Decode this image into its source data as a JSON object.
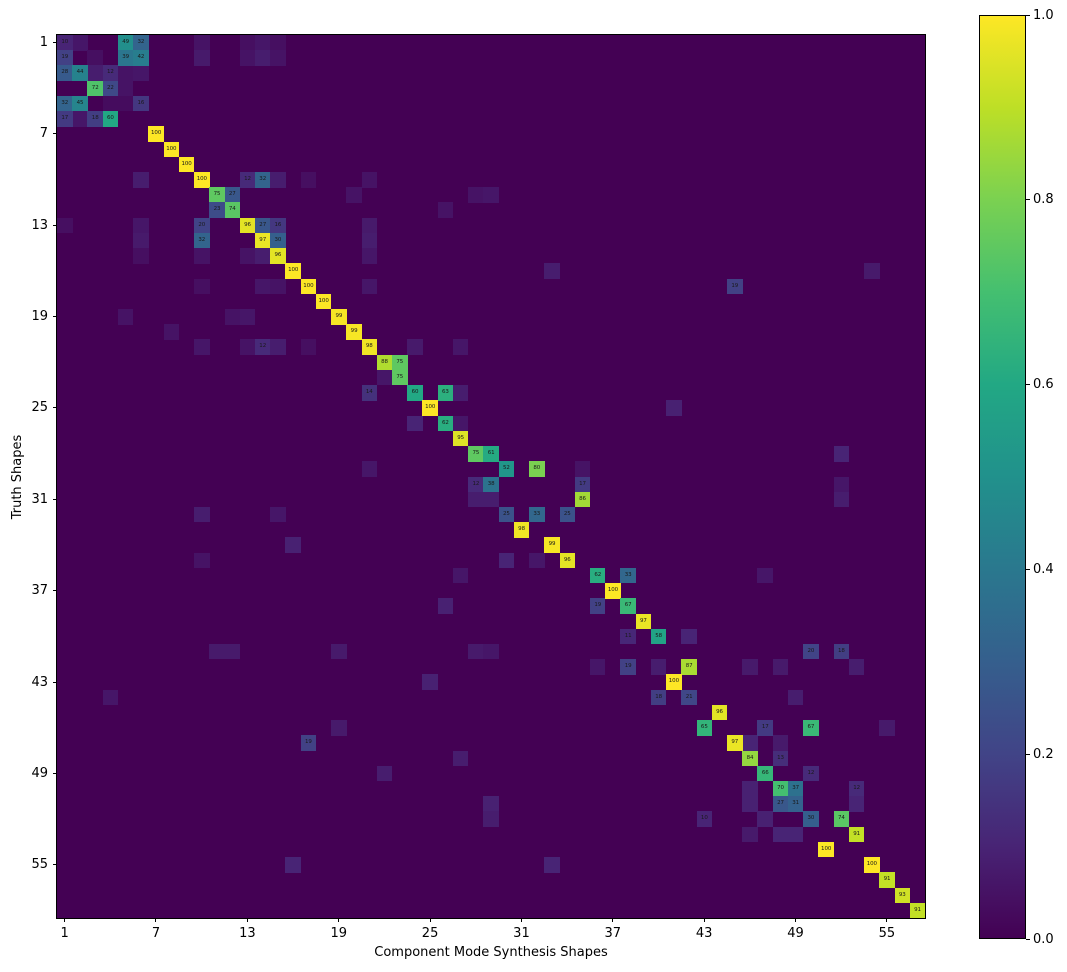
{
  "chart_data": {
    "type": "heatmap",
    "title": "",
    "xlabel": "Component Mode Synthesis Shapes",
    "ylabel": "Truth Shapes",
    "n_rows": 58,
    "n_cols": 57,
    "x_ticks": [
      "1",
      "7",
      "13",
      "19",
      "25",
      "31",
      "37",
      "43",
      "49",
      "55"
    ],
    "y_ticks": [
      "1",
      "7",
      "13",
      "19",
      "25",
      "31",
      "37",
      "43",
      "49",
      "55"
    ],
    "xlim": [
      1,
      57
    ],
    "ylim": [
      1,
      58
    ],
    "grid": false,
    "colorbar": {
      "min": 0.0,
      "max": 1.0,
      "ticks": [
        "0.0",
        "0.2",
        "0.4",
        "0.6",
        "0.8",
        "1.0"
      ],
      "colormap": "viridis",
      "position": "right"
    },
    "colormap_stops": [
      "#440154",
      "#482475",
      "#414487",
      "#355f8d",
      "#2a788e",
      "#21918c",
      "#22a884",
      "#44bf70",
      "#7ad151",
      "#bddf26",
      "#fde725"
    ],
    "annotated_cells": [
      [
        1,
        1,
        10
      ],
      [
        1,
        5,
        49
      ],
      [
        1,
        6,
        32
      ],
      [
        2,
        1,
        19
      ],
      [
        2,
        5,
        39
      ],
      [
        2,
        6,
        42
      ],
      [
        3,
        1,
        28
      ],
      [
        3,
        2,
        44
      ],
      [
        3,
        4,
        12
      ],
      [
        4,
        3,
        72
      ],
      [
        4,
        4,
        22
      ],
      [
        5,
        1,
        32
      ],
      [
        5,
        2,
        45
      ],
      [
        5,
        6,
        16
      ],
      [
        6,
        1,
        17
      ],
      [
        6,
        3,
        18
      ],
      [
        6,
        4,
        60
      ],
      [
        7,
        7,
        100
      ],
      [
        8,
        8,
        100
      ],
      [
        9,
        9,
        100
      ],
      [
        10,
        10,
        100
      ],
      [
        10,
        13,
        12
      ],
      [
        10,
        14,
        32
      ],
      [
        11,
        11,
        75
      ],
      [
        11,
        12,
        27
      ],
      [
        12,
        11,
        23
      ],
      [
        12,
        12,
        74
      ],
      [
        13,
        10,
        20
      ],
      [
        13,
        13,
        96
      ],
      [
        13,
        14,
        27
      ],
      [
        13,
        15,
        16
      ],
      [
        14,
        10,
        32
      ],
      [
        14,
        14,
        97
      ],
      [
        14,
        15,
        30
      ],
      [
        15,
        15,
        96
      ],
      [
        16,
        16,
        100
      ],
      [
        17,
        17,
        100
      ],
      [
        17,
        45,
        19
      ],
      [
        18,
        18,
        100
      ],
      [
        19,
        19,
        99
      ],
      [
        20,
        20,
        99
      ],
      [
        21,
        14,
        12
      ],
      [
        21,
        21,
        98
      ],
      [
        22,
        22,
        88
      ],
      [
        22,
        23,
        75
      ],
      [
        23,
        23,
        75
      ],
      [
        24,
        21,
        14
      ],
      [
        24,
        24,
        60
      ],
      [
        24,
        26,
        63
      ],
      [
        25,
        25,
        100
      ],
      [
        26,
        26,
        62
      ],
      [
        27,
        27,
        95
      ],
      [
        28,
        28,
        75
      ],
      [
        28,
        29,
        61
      ],
      [
        29,
        30,
        52
      ],
      [
        29,
        32,
        80
      ],
      [
        30,
        28,
        12
      ],
      [
        30,
        29,
        38
      ],
      [
        30,
        35,
        17
      ],
      [
        31,
        35,
        86
      ],
      [
        32,
        30,
        25
      ],
      [
        32,
        32,
        33
      ],
      [
        32,
        34,
        25
      ],
      [
        33,
        31,
        98
      ],
      [
        34,
        33,
        99
      ],
      [
        35,
        34,
        96
      ],
      [
        36,
        36,
        62
      ],
      [
        36,
        38,
        33
      ],
      [
        37,
        37,
        100
      ],
      [
        38,
        36,
        19
      ],
      [
        38,
        38,
        67
      ],
      [
        39,
        39,
        97
      ],
      [
        40,
        38,
        11
      ],
      [
        40,
        40,
        58
      ],
      [
        41,
        50,
        20
      ],
      [
        41,
        52,
        18
      ],
      [
        42,
        38,
        19
      ],
      [
        42,
        42,
        87
      ],
      [
        43,
        41,
        100
      ],
      [
        44,
        40,
        18
      ],
      [
        44,
        42,
        21
      ],
      [
        45,
        44,
        96
      ],
      [
        46,
        43,
        65
      ],
      [
        46,
        47,
        17
      ],
      [
        46,
        50,
        67
      ],
      [
        47,
        17,
        19
      ],
      [
        47,
        45,
        97
      ],
      [
        48,
        46,
        84
      ],
      [
        48,
        48,
        13
      ],
      [
        49,
        47,
        66
      ],
      [
        49,
        50,
        12
      ],
      [
        50,
        48,
        70
      ],
      [
        50,
        49,
        37
      ],
      [
        50,
        53,
        12
      ],
      [
        51,
        48,
        27
      ],
      [
        51,
        49,
        31
      ],
      [
        52,
        43,
        10
      ],
      [
        52,
        50,
        30
      ],
      [
        52,
        52,
        74
      ],
      [
        53,
        53,
        91
      ],
      [
        54,
        51,
        100
      ],
      [
        55,
        54,
        100
      ],
      [
        56,
        55,
        91
      ],
      [
        57,
        56,
        93
      ],
      [
        58,
        57,
        91
      ]
    ],
    "faint_cells": [
      [
        1,
        2,
        6
      ],
      [
        1,
        10,
        5
      ],
      [
        1,
        13,
        4
      ],
      [
        1,
        14,
        6
      ],
      [
        1,
        15,
        4
      ],
      [
        2,
        3,
        4
      ],
      [
        2,
        10,
        7
      ],
      [
        2,
        13,
        5
      ],
      [
        2,
        14,
        8
      ],
      [
        2,
        15,
        5
      ],
      [
        3,
        3,
        8
      ],
      [
        3,
        5,
        5
      ],
      [
        3,
        6,
        6
      ],
      [
        4,
        5,
        5
      ],
      [
        5,
        4,
        3
      ],
      [
        5,
        5,
        3
      ],
      [
        6,
        2,
        6
      ],
      [
        10,
        6,
        8
      ],
      [
        10,
        15,
        8
      ],
      [
        10,
        17,
        4
      ],
      [
        10,
        21,
        5
      ],
      [
        11,
        20,
        5
      ],
      [
        11,
        28,
        5
      ],
      [
        11,
        29,
        6
      ],
      [
        12,
        26,
        5
      ],
      [
        13,
        1,
        4
      ],
      [
        13,
        6,
        6
      ],
      [
        13,
        21,
        7
      ],
      [
        14,
        6,
        7
      ],
      [
        14,
        21,
        8
      ],
      [
        15,
        6,
        4
      ],
      [
        15,
        10,
        5
      ],
      [
        15,
        13,
        5
      ],
      [
        15,
        14,
        8
      ],
      [
        15,
        21,
        6
      ],
      [
        16,
        33,
        8
      ],
      [
        16,
        54,
        7
      ],
      [
        17,
        10,
        4
      ],
      [
        17,
        14,
        6
      ],
      [
        17,
        15,
        5
      ],
      [
        17,
        21,
        6
      ],
      [
        19,
        5,
        5
      ],
      [
        19,
        12,
        5
      ],
      [
        19,
        13,
        6
      ],
      [
        20,
        8,
        5
      ],
      [
        21,
        10,
        6
      ],
      [
        21,
        13,
        5
      ],
      [
        21,
        15,
        8
      ],
      [
        21,
        17,
        4
      ],
      [
        21,
        24,
        7
      ],
      [
        21,
        27,
        6
      ],
      [
        23,
        22,
        6
      ],
      [
        24,
        27,
        8
      ],
      [
        25,
        41,
        9
      ],
      [
        26,
        24,
        10
      ],
      [
        26,
        27,
        6
      ],
      [
        28,
        52,
        10
      ],
      [
        29,
        21,
        6
      ],
      [
        29,
        35,
        5
      ],
      [
        30,
        52,
        6
      ],
      [
        31,
        28,
        8
      ],
      [
        31,
        29,
        8
      ],
      [
        31,
        52,
        8
      ],
      [
        32,
        10,
        8
      ],
      [
        32,
        15,
        6
      ],
      [
        34,
        16,
        9
      ],
      [
        35,
        10,
        5
      ],
      [
        35,
        30,
        10
      ],
      [
        35,
        32,
        6
      ],
      [
        36,
        27,
        6
      ],
      [
        36,
        47,
        6
      ],
      [
        38,
        26,
        9
      ],
      [
        40,
        42,
        10
      ],
      [
        41,
        11,
        7
      ],
      [
        41,
        12,
        7
      ],
      [
        41,
        19,
        7
      ],
      [
        41,
        28,
        7
      ],
      [
        41,
        29,
        6
      ],
      [
        42,
        36,
        6
      ],
      [
        42,
        40,
        8
      ],
      [
        42,
        46,
        7
      ],
      [
        42,
        48,
        7
      ],
      [
        42,
        53,
        8
      ],
      [
        43,
        25,
        9
      ],
      [
        44,
        4,
        6
      ],
      [
        44,
        49,
        8
      ],
      [
        46,
        19,
        7
      ],
      [
        46,
        55,
        7
      ],
      [
        47,
        46,
        10
      ],
      [
        47,
        48,
        7
      ],
      [
        48,
        27,
        8
      ],
      [
        49,
        22,
        8
      ],
      [
        50,
        46,
        9
      ],
      [
        51,
        29,
        9
      ],
      [
        51,
        46,
        9
      ],
      [
        51,
        53,
        10
      ],
      [
        52,
        29,
        8
      ],
      [
        52,
        47,
        9
      ],
      [
        53,
        46,
        7
      ],
      [
        53,
        48,
        10
      ],
      [
        53,
        49,
        10
      ],
      [
        55,
        16,
        10
      ],
      [
        55,
        33,
        10
      ]
    ]
  }
}
